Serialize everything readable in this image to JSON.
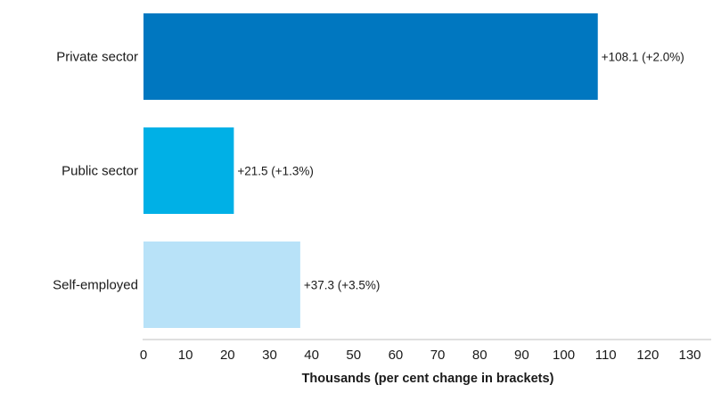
{
  "chart_data": {
    "type": "bar",
    "orientation": "horizontal",
    "title": "",
    "xlabel": "Thousands (per cent change in brackets)",
    "ylabel": "",
    "xlim": [
      0,
      130
    ],
    "xticks": [
      0,
      10,
      20,
      30,
      40,
      50,
      60,
      70,
      80,
      90,
      100,
      110,
      120,
      130
    ],
    "grid": false,
    "legend": "none",
    "categories": [
      "Private sector",
      "Public sector",
      "Self-employed"
    ],
    "values": [
      108.1,
      21.5,
      37.3
    ],
    "data_labels": [
      "+108.1 (+2.0%)",
      "+21.5 (+1.3%)",
      "+37.3 (+3.5%)"
    ],
    "colors": [
      "#0077c0",
      "#00b0e6",
      "#b8e2f8"
    ],
    "axis_color": "#bfbfbf"
  }
}
